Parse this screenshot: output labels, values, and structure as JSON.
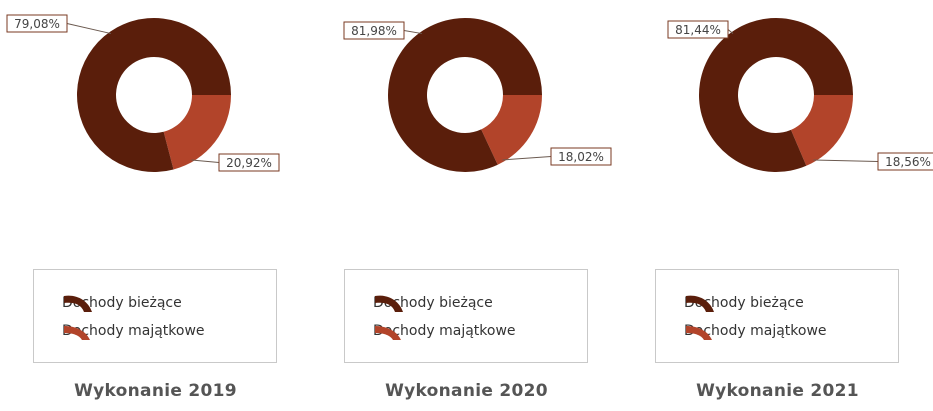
{
  "colors": {
    "current": "#5a1e0b",
    "capital": "#b2442a",
    "label_border": "#7a3a22"
  },
  "chart_data": [
    {
      "type": "pie",
      "variant": "donut",
      "title": "Wykonanie 2019",
      "categories": [
        "Dochody bieżące",
        "Dochody majątkowe"
      ],
      "values": [
        79.08,
        20.92
      ],
      "value_labels": [
        "79,08%",
        "20,92%"
      ],
      "legend": {
        "position": "bottom",
        "entries": [
          "Dochody bieżące",
          "Dochody majątkowe"
        ]
      }
    },
    {
      "type": "pie",
      "variant": "donut",
      "title": "Wykonanie 2020",
      "categories": [
        "Dochody bieżące",
        "Dochody majątkowe"
      ],
      "values": [
        81.98,
        18.02
      ],
      "value_labels": [
        "81,98%",
        "18,02%"
      ],
      "legend": {
        "position": "bottom",
        "entries": [
          "Dochody bieżące",
          "Dochody majątkowe"
        ]
      }
    },
    {
      "type": "pie",
      "variant": "donut",
      "title": "Wykonanie 2021",
      "categories": [
        "Dochody bieżące",
        "Dochody majątkowe"
      ],
      "values": [
        81.44,
        18.56
      ],
      "value_labels": [
        "81,44%",
        "18,56%"
      ],
      "legend": {
        "position": "bottom",
        "entries": [
          "Dochody bieżące",
          "Dochody majątkowe"
        ]
      }
    }
  ]
}
